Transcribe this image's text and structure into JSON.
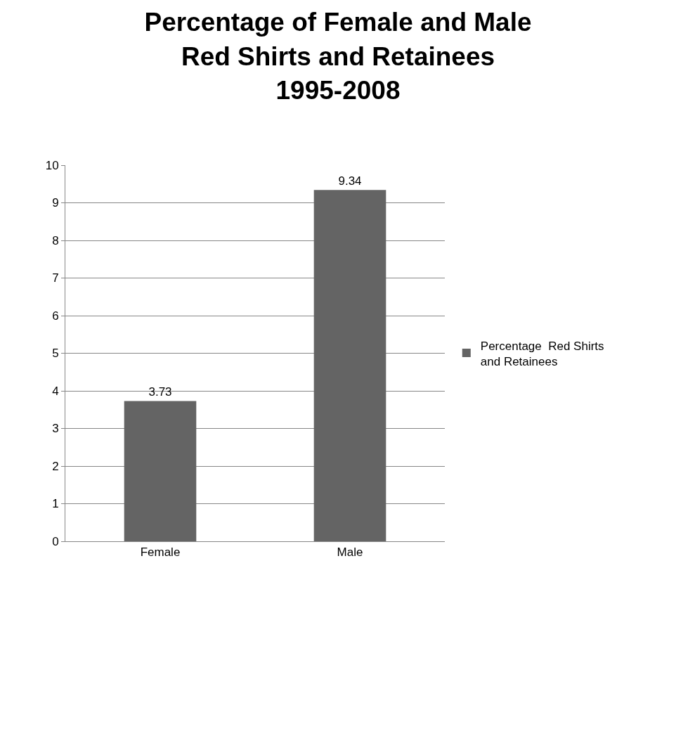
{
  "chart_data": {
    "type": "bar",
    "title": "Percentage of Female and Male\nRed Shirts and Retainees\n1995-2008",
    "categories": [
      "Female",
      "Male"
    ],
    "series": [
      {
        "name": "Percentage  Red Shirts and Retainees",
        "color": "#646464",
        "values": [
          3.73,
          9.34
        ]
      }
    ],
    "ylim": [
      0,
      10
    ],
    "yticks": [
      0,
      1,
      2,
      3,
      4,
      5,
      6,
      7,
      8,
      9,
      10
    ],
    "grid": "y",
    "legend": "right",
    "data_labels": true
  }
}
